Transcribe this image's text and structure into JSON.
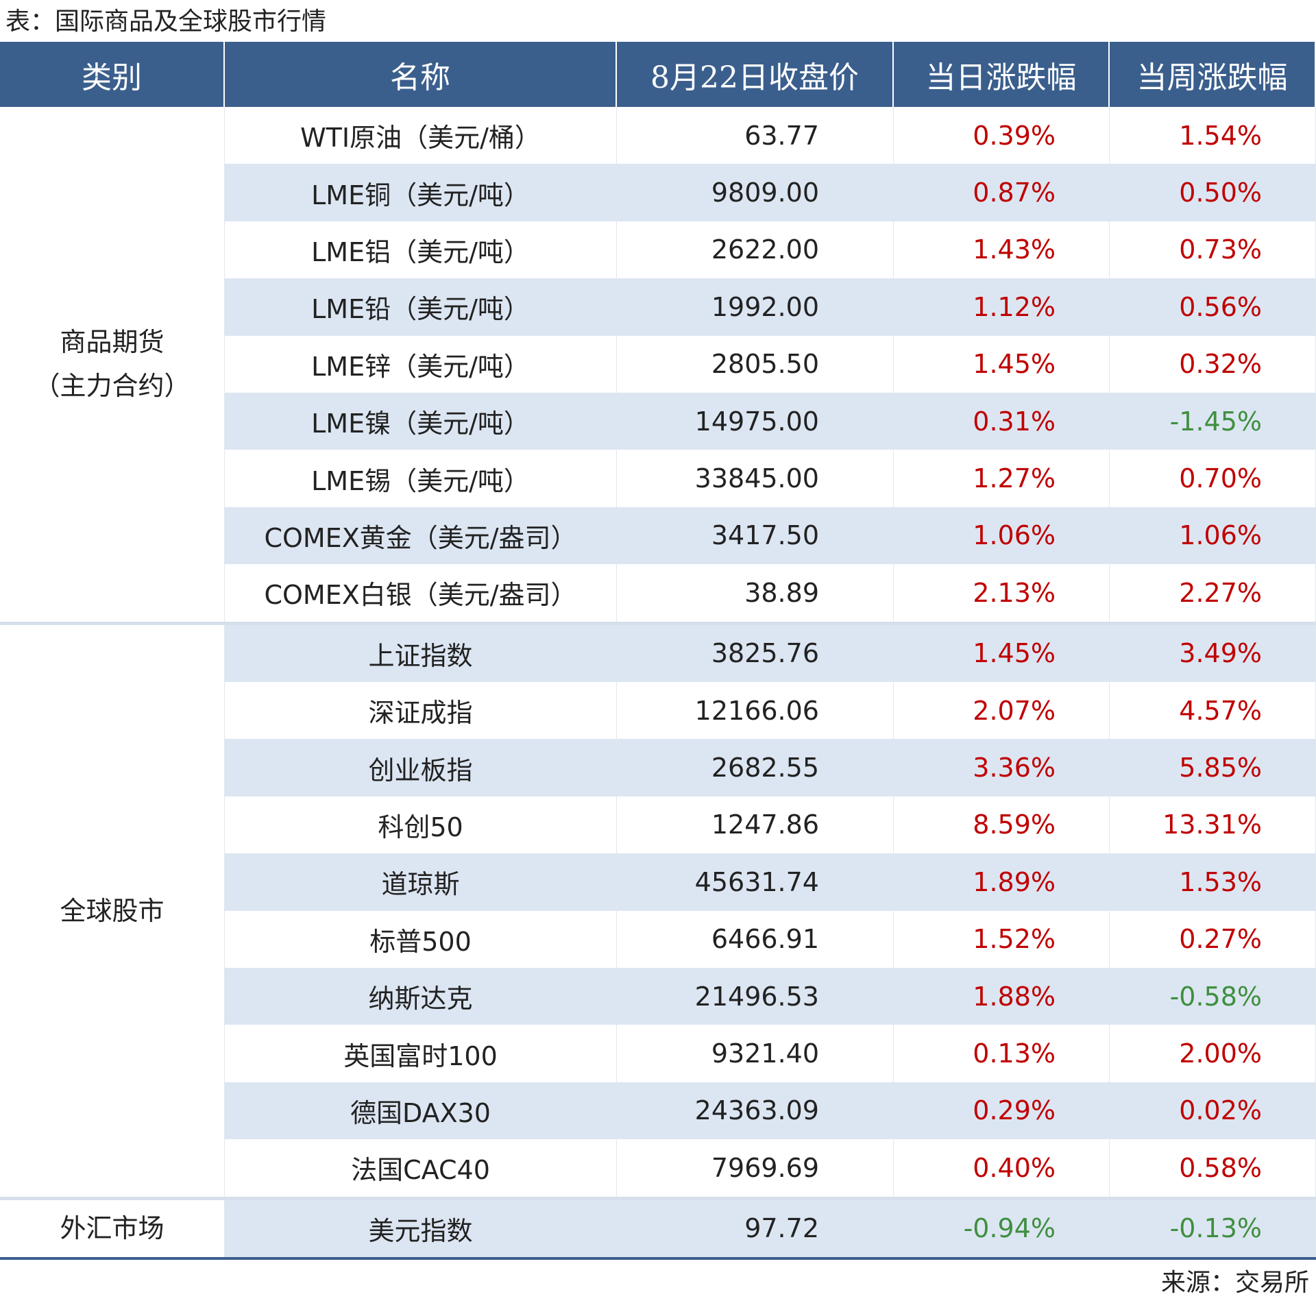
{
  "header": {
    "title": "表：国际商品及全球股市行情"
  },
  "table": {
    "columns": [
      "类别",
      "名称",
      "8月22日收盘价",
      "当日涨跌幅",
      "当周涨跌幅"
    ],
    "groups": [
      {
        "category": [
          "商品期货",
          "（主力合约）"
        ],
        "rows": [
          [
            "WTI原油（美元/桶）",
            "63.77",
            "0.39%",
            "1.54%"
          ],
          [
            "LME铜（美元/吨）",
            "9809.00",
            "0.87%",
            "0.50%"
          ],
          [
            "LME铝（美元/吨）",
            "2622.00",
            "1.43%",
            "0.73%"
          ],
          [
            "LME铅（美元/吨）",
            "1992.00",
            "1.12%",
            "0.56%"
          ],
          [
            "LME锌（美元/吨）",
            "2805.50",
            "1.45%",
            "0.32%"
          ],
          [
            "LME镍（美元/吨）",
            "14975.00",
            "0.31%",
            "-1.45%"
          ],
          [
            "LME锡（美元/吨）",
            "33845.00",
            "1.27%",
            "0.70%"
          ],
          [
            "COMEX黄金（美元/盎司）",
            "3417.50",
            "1.06%",
            "1.06%"
          ],
          [
            "COMEX白银（美元/盎司）",
            "38.89",
            "2.13%",
            "2.27%"
          ]
        ]
      },
      {
        "category": [
          "全球股市"
        ],
        "rows": [
          [
            "上证指数",
            "3825.76",
            "1.45%",
            "3.49%"
          ],
          [
            "深证成指",
            "12166.06",
            "2.07%",
            "4.57%"
          ],
          [
            "创业板指",
            "2682.55",
            "3.36%",
            "5.85%"
          ],
          [
            "科创50",
            "1247.86",
            "8.59%",
            "13.31%"
          ],
          [
            "道琼斯",
            "45631.74",
            "1.89%",
            "1.53%"
          ],
          [
            "标普500",
            "6466.91",
            "1.52%",
            "0.27%"
          ],
          [
            "纳斯达克",
            "21496.53",
            "1.88%",
            "-0.58%"
          ],
          [
            "英国富时100",
            "9321.40",
            "0.13%",
            "2.00%"
          ],
          [
            "德国DAX30",
            "24363.09",
            "0.29%",
            "0.02%"
          ],
          [
            "法国CAC40",
            "7969.69",
            "0.40%",
            "0.58%"
          ]
        ]
      },
      {
        "category": [
          "外汇市场"
        ],
        "rows": [
          [
            "美元指数",
            "97.72",
            "-0.94%",
            "-0.13%"
          ]
        ]
      }
    ]
  },
  "footer": {
    "source": "来源：交易所"
  }
}
